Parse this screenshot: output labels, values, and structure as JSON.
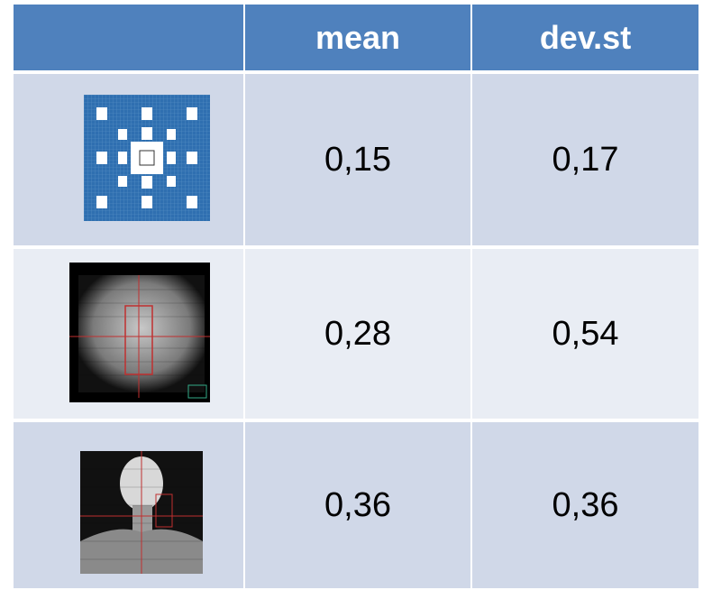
{
  "table": {
    "header": [
      "mean",
      "dev.st"
    ],
    "rows": [
      [
        "0,15",
        "0,17"
      ],
      [
        "0,28",
        "0,54"
      ],
      [
        "0,36",
        "0,36"
      ]
    ]
  }
}
